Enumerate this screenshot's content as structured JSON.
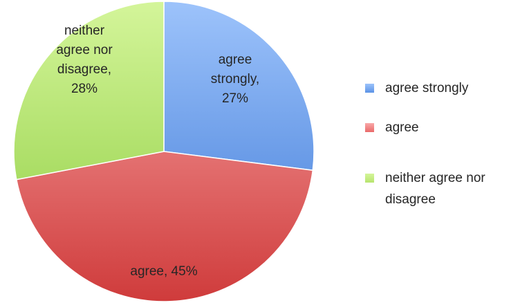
{
  "chart_data": {
    "type": "pie",
    "title": "",
    "slices": [
      {
        "label": "agree strongly",
        "value": 27,
        "display_label": "agree\nstrongly,\n27%",
        "color_light": "#9dc3fb",
        "color_dark": "#3c78d6"
      },
      {
        "label": "agree",
        "value": 45,
        "display_label": "agree, 45%",
        "color_light": "#f9a8a8",
        "color_dark": "#cf3b3b"
      },
      {
        "label": "neither agree nor disagree",
        "value": 28,
        "display_label": "neither\nagree nor\ndisagree,\n28%",
        "color_light": "#d4f59a",
        "color_dark": "#8ccc3e"
      }
    ],
    "start_angle_deg": 0,
    "direction": "clockwise",
    "legend_position": "right"
  },
  "legend": {
    "items": [
      {
        "label": "agree strongly",
        "color": "#5b93e6"
      },
      {
        "label": "agree",
        "color": "#e96a6a"
      },
      {
        "label": "neither agree nor disagree",
        "color": "#b7e46e"
      }
    ]
  }
}
